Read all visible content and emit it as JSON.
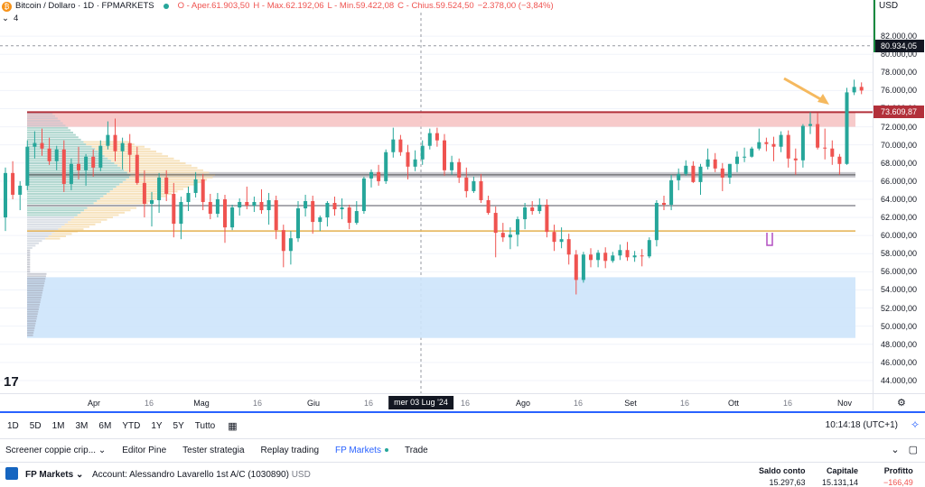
{
  "header": {
    "title": "Bitcoin / Dollaro · 1D · FPMARKETS",
    "open": "O - Aper.61.903,50",
    "high": "H - Max.62.192,06",
    "low": "L - Min.59.422,08",
    "close": "C - Chius.59.524,50",
    "change": "−2.378,00 (−3,84%)",
    "indicator_count": "4",
    "icon": "bitcoin-icon"
  },
  "price_scale": {
    "currency": "USD",
    "ticks": [
      "82.000,00",
      "80.000,00",
      "78.000,00",
      "76.000,00",
      "74.000,00",
      "72.000,00",
      "70.000,00",
      "68.000,00",
      "66.000,00",
      "64.000,00",
      "62.000,00",
      "60.000,00",
      "58.000,00",
      "56.000,00",
      "54.000,00",
      "52.000,00",
      "50.000,00",
      "48.000,00",
      "46.000,00",
      "44.000,00"
    ],
    "current_price": "80.934,05",
    "line_price": "73.609,87",
    "current_color": "#131722",
    "line_color": "#b2303a"
  },
  "time_axis": {
    "labels": [
      "Apr",
      "16",
      "Mag",
      "16",
      "Giu",
      "16",
      "mer 03 Lug '24",
      "16",
      "Ago",
      "16",
      "Set",
      "16",
      "Ott",
      "16",
      "Nov"
    ],
    "crosshair_date": "mer 03 Lug '24"
  },
  "timeframes": [
    "1D",
    "5D",
    "1M",
    "3M",
    "6M",
    "YTD",
    "1Y",
    "5Y",
    "Tutto"
  ],
  "clock": "10:14:18 (UTC+1)",
  "panel_tabs": [
    {
      "label": "Screener coppie crip...",
      "active": false,
      "dropdown": true
    },
    {
      "label": "Editor Pine",
      "active": false
    },
    {
      "label": "Tester strategia",
      "active": false
    },
    {
      "label": "Replay trading",
      "active": false
    },
    {
      "label": "FP Markets",
      "active": true
    },
    {
      "label": "Trade",
      "active": false
    }
  ],
  "broker": {
    "name": "FP Markets",
    "account": "Account: Alessandro Lavarello 1st A/C (1030890)",
    "account_currency": "USD",
    "balance_label": "Saldo conto",
    "balance_value": "15.297,63",
    "equity_label": "Capitale",
    "equity_value": "15.131,14",
    "profit_label": "Profitto",
    "profit_value": "−166,49"
  },
  "colors": {
    "up": "#26a69a",
    "down": "#ef5350",
    "accent": "#2962ff",
    "zone_red": "#f6c4c4",
    "zone_blue": "#cde4fb",
    "arrow": "#f5b95f"
  },
  "chart_data": {
    "type": "candlestick",
    "symbol": "BTCUSD",
    "interval": "1D",
    "ylim": [
      43000,
      84000
    ],
    "x_dates": [
      "2024-03-17",
      "2024-11-03"
    ],
    "candles": [
      [
        62000,
        67500,
        60500,
        66900
      ],
      [
        66900,
        68200,
        64000,
        64500
      ],
      [
        64500,
        66000,
        62800,
        65500
      ],
      [
        65500,
        70500,
        65000,
        69800
      ],
      [
        69800,
        71500,
        68500,
        70200
      ],
      [
        70200,
        71800,
        68800,
        69600
      ],
      [
        69600,
        70800,
        67800,
        68200
      ],
      [
        68200,
        69900,
        67200,
        69500
      ],
      [
        69500,
        70500,
        64800,
        65700
      ],
      [
        65700,
        68500,
        65000,
        67900
      ],
      [
        67900,
        69800,
        66200,
        67200
      ],
      [
        67200,
        69000,
        65500,
        68700
      ],
      [
        68700,
        69500,
        66500,
        67500
      ],
      [
        67500,
        70500,
        67100,
        69900
      ],
      [
        69900,
        72600,
        69500,
        71100
      ],
      [
        71100,
        72900,
        68200,
        69300
      ],
      [
        69300,
        70800,
        67300,
        70200
      ],
      [
        70200,
        71200,
        67000,
        68900
      ],
      [
        68900,
        69800,
        65600,
        65800
      ],
      [
        65800,
        67200,
        62000,
        63500
      ],
      [
        63500,
        64800,
        61000,
        63900
      ],
      [
        63900,
        66900,
        62500,
        66400
      ],
      [
        66400,
        67200,
        63800,
        64600
      ],
      [
        64600,
        65800,
        59800,
        61300
      ],
      [
        61300,
        64300,
        59600,
        63700
      ],
      [
        63700,
        65400,
        62700,
        64700
      ],
      [
        64700,
        67000,
        64200,
        66200
      ],
      [
        66200,
        66800,
        62800,
        63700
      ],
      [
        63700,
        64600,
        61800,
        62400
      ],
      [
        62400,
        64700,
        62000,
        64000
      ],
      [
        64000,
        64500,
        59200,
        60900
      ],
      [
        60900,
        63400,
        60600,
        63100
      ],
      [
        63100,
        64100,
        62200,
        63700
      ],
      [
        63700,
        65400,
        62900,
        63300
      ],
      [
        63300,
        64300,
        62600,
        63700
      ],
      [
        63700,
        65100,
        62400,
        62800
      ],
      [
        62800,
        64700,
        61200,
        63900
      ],
      [
        63900,
        64400,
        59600,
        60600
      ],
      [
        60600,
        61200,
        56500,
        58300
      ],
      [
        58300,
        60500,
        56800,
        59700
      ],
      [
        59700,
        63800,
        59300,
        63000
      ],
      [
        63000,
        64500,
        62100,
        63800
      ],
      [
        63800,
        64400,
        60200,
        61500
      ],
      [
        61500,
        62200,
        60500,
        62000
      ],
      [
        62000,
        63800,
        61000,
        63600
      ],
      [
        63600,
        64300,
        62200,
        62900
      ],
      [
        62900,
        64100,
        61800,
        63100
      ],
      [
        63100,
        63400,
        60700,
        61400
      ],
      [
        61400,
        63800,
        61200,
        62700
      ],
      [
        62700,
        66500,
        62400,
        66300
      ],
      [
        66300,
        67300,
        65300,
        67000
      ],
      [
        67000,
        67800,
        65500,
        66000
      ],
      [
        66000,
        69500,
        65700,
        69200
      ],
      [
        69200,
        71900,
        68600,
        70600
      ],
      [
        70600,
        71100,
        68800,
        69200
      ],
      [
        69200,
        70000,
        66200,
        67600
      ],
      [
        67600,
        69400,
        67100,
        68400
      ],
      [
        68400,
        70500,
        67800,
        69900
      ],
      [
        69900,
        71800,
        69500,
        71300
      ],
      [
        71300,
        71900,
        69800,
        70500
      ],
      [
        70500,
        71200,
        66600,
        67200
      ],
      [
        67200,
        68800,
        66700,
        68100
      ],
      [
        68100,
        68500,
        65800,
        66400
      ],
      [
        66400,
        67500,
        64200,
        64900
      ],
      [
        64900,
        66500,
        64700,
        66000
      ],
      [
        66000,
        66800,
        63600,
        63900
      ],
      [
        63900,
        64400,
        62300,
        62500
      ],
      [
        62500,
        63200,
        57600,
        60300
      ],
      [
        60300,
        61400,
        59300,
        59800
      ],
      [
        59800,
        60900,
        58500,
        60100
      ],
      [
        60100,
        62100,
        58800,
        61800
      ],
      [
        61800,
        63600,
        60700,
        63100
      ],
      [
        63100,
        63800,
        62300,
        62700
      ],
      [
        62700,
        64100,
        62400,
        63400
      ],
      [
        63400,
        64000,
        59800,
        60400
      ],
      [
        60400,
        61200,
        58300,
        59300
      ],
      [
        59300,
        60900,
        58600,
        59600
      ],
      [
        59600,
        60200,
        56800,
        57900
      ],
      [
        57900,
        58400,
        53500,
        55100
      ],
      [
        55100,
        58200,
        54800,
        57900
      ],
      [
        57900,
        58600,
        56500,
        57300
      ],
      [
        57300,
        58400,
        56500,
        58100
      ],
      [
        58100,
        58700,
        56400,
        57200
      ],
      [
        57200,
        58200,
        57000,
        57800
      ],
      [
        57800,
        59000,
        57300,
        58400
      ],
      [
        58400,
        59300,
        57200,
        57600
      ],
      [
        57600,
        58300,
        57100,
        57800
      ],
      [
        57800,
        58500,
        56600,
        57700
      ],
      [
        57700,
        59800,
        57500,
        59500
      ],
      [
        59500,
        63900,
        58800,
        63600
      ],
      [
        63600,
        64400,
        62800,
        63400
      ],
      [
        63400,
        66700,
        62800,
        66100
      ],
      [
        66100,
        67400,
        65000,
        66800
      ],
      [
        66800,
        68300,
        66600,
        67700
      ],
      [
        67700,
        68200,
        65800,
        65900
      ],
      [
        65900,
        67900,
        64500,
        67600
      ],
      [
        67600,
        69600,
        67300,
        68400
      ],
      [
        68400,
        69100,
        67000,
        67400
      ],
      [
        67400,
        68000,
        64900,
        66400
      ],
      [
        66400,
        67900,
        65700,
        67900
      ],
      [
        67900,
        69300,
        67000,
        68700
      ],
      [
        68700,
        69700,
        68100,
        68700
      ],
      [
        68700,
        69800,
        68600,
        69600
      ],
      [
        69600,
        71800,
        69400,
        70300
      ],
      [
        70300,
        70800,
        69300,
        70100
      ],
      [
        70100,
        70900,
        68200,
        69800
      ],
      [
        69800,
        71500,
        69200,
        71100
      ],
      [
        71100,
        71600,
        67500,
        68500
      ],
      [
        68500,
        69600,
        66700,
        68300
      ],
      [
        68300,
        72300,
        67500,
        72100
      ],
      [
        72100,
        73600,
        71200,
        72300
      ],
      [
        72300,
        73500,
        69500,
        69700
      ],
      [
        69700,
        71800,
        68400,
        69600
      ],
      [
        69600,
        70500,
        67800,
        68700
      ],
      [
        68700,
        69000,
        66700,
        67900
      ],
      [
        67900,
        76300,
        67800,
        75800
      ],
      [
        75800,
        77200,
        75500,
        76400
      ],
      [
        76400,
        76900,
        75600,
        76000
      ]
    ]
  }
}
